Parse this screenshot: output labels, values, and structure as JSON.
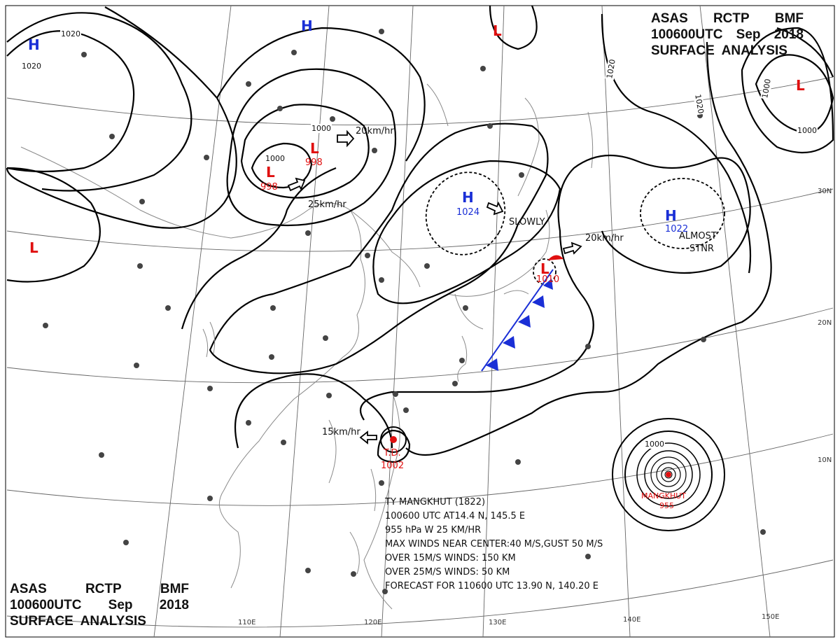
{
  "header": {
    "line1": [
      "ASAS",
      "RCTP",
      "BMF"
    ],
    "line2": [
      "100600UTC",
      "Sep",
      "2018"
    ],
    "line3": "SURFACE  ANALYSIS"
  },
  "latitudes": [
    "30N",
    "20N",
    "10N"
  ],
  "longitudes": [
    "110E",
    "120E",
    "130E",
    "140E",
    "150E"
  ],
  "highs": [
    {
      "label": "H",
      "value": ""
    },
    {
      "label": "H",
      "value": ""
    },
    {
      "label": "H",
      "value": "1024"
    },
    {
      "label": "H",
      "value": "1022"
    }
  ],
  "lows": [
    {
      "label": "L",
      "value": "998"
    },
    {
      "label": "L",
      "value": "998"
    },
    {
      "label": "L",
      "value": "1010"
    },
    {
      "label": "L",
      "value": ""
    },
    {
      "label": "L",
      "value": ""
    },
    {
      "label": "L",
      "value": ""
    }
  ],
  "isobars": [
    "1020",
    "1020",
    "1000",
    "1000",
    "1020",
    "1020",
    "1000",
    "1000",
    "1000"
  ],
  "motions": [
    "20km/hr",
    "25km/hr",
    "SLOWLY",
    "20km/hr",
    "ALMOST",
    "STNR",
    "15km/hr"
  ],
  "td": {
    "label": "T.D.",
    "pressure": "1002"
  },
  "typhoon_marker": {
    "name": "MANGKHUT",
    "pressure": "955"
  },
  "typhoon_info": [
    "TY  MANGKHUT  (1822)",
    "100600 UTC  AT14.4 N, 145.5 E",
    "955 hPa  W  25 KM/HR",
    "MAX WINDS NEAR CENTER:40 M/S,GUST 50 M/S",
    "OVER 15M/S WINDS:  150 KM",
    "OVER 25M/S WINDS:  50 KM",
    "FORECAST FOR  110600 UTC  13.90 N,  140.20 E"
  ],
  "colors": {
    "high": "#1a2fd6",
    "low": "#e01010",
    "isobar": "#000000",
    "grid": "#555555",
    "coast": "#8a8a8a",
    "cold_front": "#1a2fd6"
  }
}
